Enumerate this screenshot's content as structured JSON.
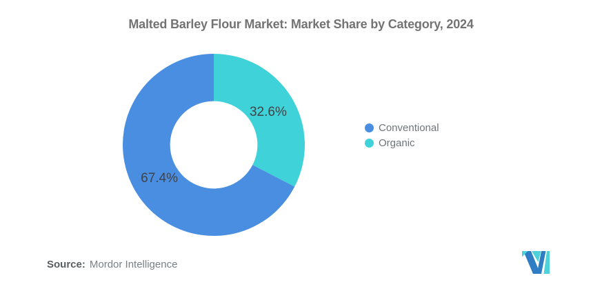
{
  "title": "Malted Barley Flour Market: Market Share by Category, 2024",
  "chart_data": {
    "type": "pie",
    "subtype": "donut",
    "title": "Malted Barley Flour Market: Market Share by Category, 2024",
    "categories": [
      "Conventional",
      "Organic"
    ],
    "values": [
      67.4,
      32.6
    ],
    "value_labels": [
      "67.4%",
      "32.6%"
    ],
    "unit": "%",
    "colors": [
      "#4A8EE2",
      "#3FD2D8"
    ],
    "start_angle_deg": 0,
    "direction": "clockwise",
    "first_slice_from_top": "Organic",
    "donut_hole_ratio": 0.48,
    "label_color": "#3F4348",
    "legend_position": "right",
    "background": "#FFFFFF"
  },
  "legend": {
    "items": [
      {
        "label": "Conventional",
        "color": "#4A8EE2"
      },
      {
        "label": "Organic",
        "color": "#3FD2D8"
      }
    ]
  },
  "source": {
    "prefix": "Source:",
    "text": "Mordor Intelligence"
  },
  "logo": {
    "name": "mordor-intelligence-logo",
    "blue": "#2F7DC3",
    "teal": "#4ED2DA"
  }
}
